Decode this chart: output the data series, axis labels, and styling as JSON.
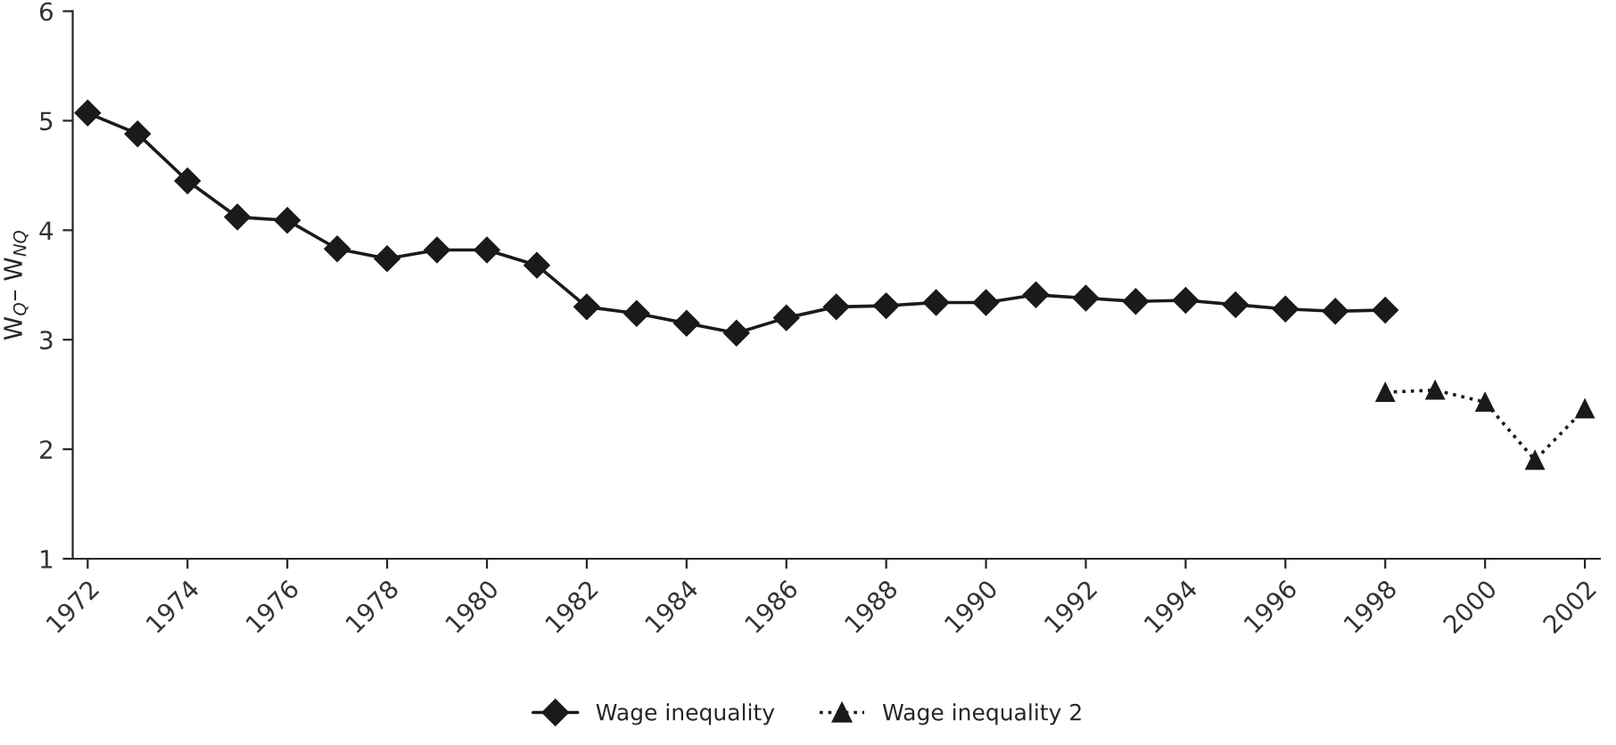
{
  "chart_data": {
    "type": "line",
    "ylabel": "W$_{Q}$– W$_{NQ}$",
    "categories": [
      "1972",
      null,
      "1974",
      null,
      "1976",
      null,
      "1978",
      null,
      "1980",
      null,
      "1982",
      null,
      "1984",
      null,
      "1986",
      null,
      "1988",
      null,
      "1990",
      null,
      "1992",
      null,
      "1994",
      null,
      "1996",
      null,
      "1998",
      null,
      "2000",
      null,
      "2002"
    ],
    "series": [
      {
        "name": "Wage inequality",
        "color": "#1a1a1a",
        "marker": "diamond",
        "line_style": "solid",
        "values": [
          5.07,
          4.88,
          4.45,
          4.12,
          4.09,
          3.83,
          3.74,
          3.82,
          3.82,
          3.68,
          3.3,
          3.24,
          3.15,
          3.06,
          3.2,
          3.3,
          3.31,
          3.34,
          3.34,
          3.41,
          3.38,
          3.35,
          3.36,
          3.32,
          3.28,
          3.26,
          3.27,
          null,
          null,
          null,
          null
        ]
      },
      {
        "name": "Wage inequality 2",
        "color": "#1a1a1a",
        "marker": "triangle",
        "line_style": "dotted",
        "values": [
          null,
          null,
          null,
          null,
          null,
          null,
          null,
          null,
          null,
          null,
          null,
          null,
          null,
          null,
          null,
          null,
          null,
          null,
          null,
          null,
          null,
          null,
          null,
          null,
          null,
          null,
          2.52,
          2.54,
          2.43,
          1.9,
          2.37
        ]
      }
    ],
    "ylim": [
      1,
      6
    ],
    "yticks": [
      1,
      2,
      3,
      4,
      5,
      6
    ],
    "grid": false,
    "legend": "bottom"
  }
}
